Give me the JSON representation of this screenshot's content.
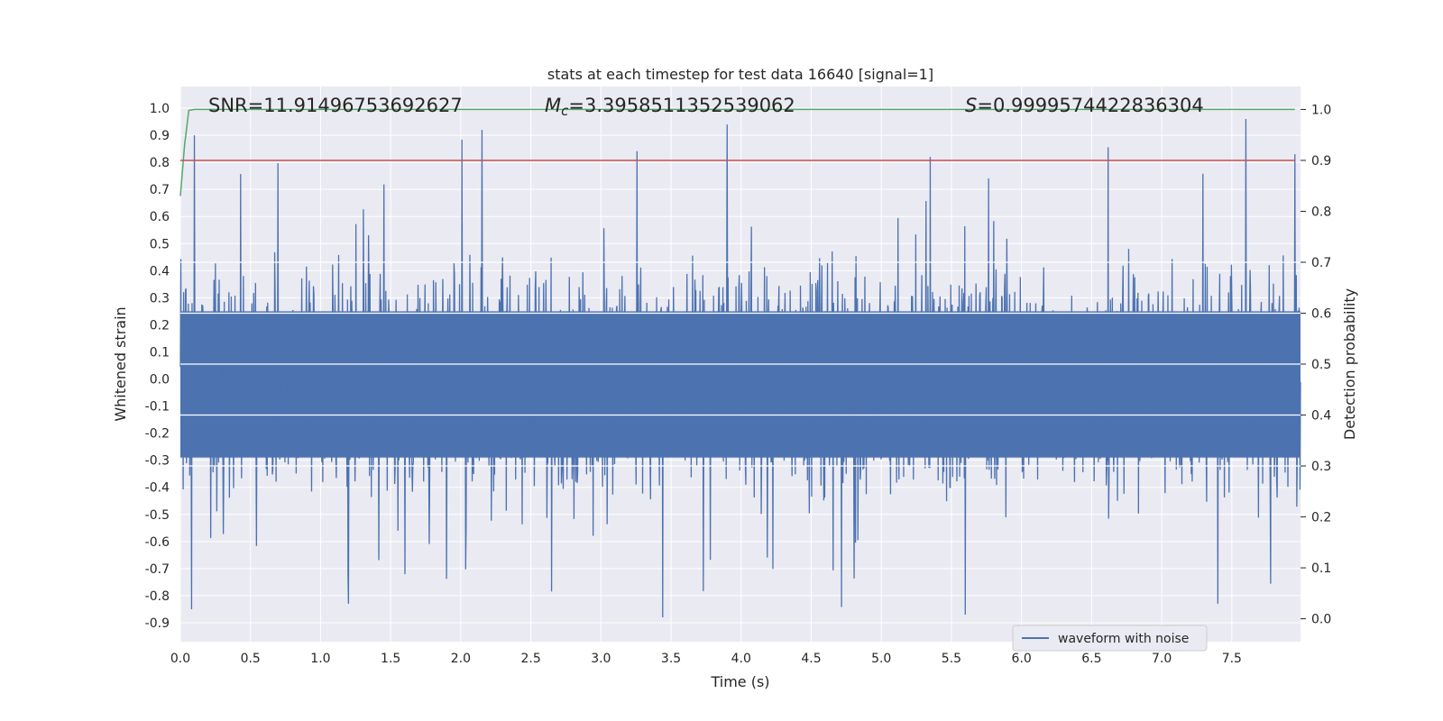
{
  "chart_data": {
    "type": "line",
    "title": "stats at each timestep for test data 16640 [signal=1]",
    "xlabel": "Time (s)",
    "ylabel": "Whitened strain",
    "y2label": "Detection probability",
    "xlim": [
      0.0,
      7.99
    ],
    "ylim": [
      -0.97,
      1.08
    ],
    "y2lim": [
      -0.045,
      1.045
    ],
    "xticks": [
      "0.0",
      "0.5",
      "1.0",
      "1.5",
      "2.0",
      "2.5",
      "3.0",
      "3.5",
      "4.0",
      "4.5",
      "5.0",
      "5.5",
      "6.0",
      "6.5",
      "7.0",
      "7.5"
    ],
    "yticks": [
      "1.0",
      "0.9",
      "0.8",
      "0.7",
      "0.6",
      "0.5",
      "0.4",
      "0.3",
      "0.2",
      "0.1",
      "0.0",
      "-0.1",
      "-0.2",
      "-0.3",
      "-0.4",
      "-0.5",
      "-0.6",
      "-0.7",
      "-0.8",
      "-0.9"
    ],
    "y2ticks": [
      "1.0",
      "0.9",
      "0.8",
      "0.7",
      "0.6",
      "0.5",
      "0.4",
      "0.3",
      "0.2",
      "0.1",
      "0.0"
    ],
    "grid": true,
    "legend_position": "lower-right",
    "annotations": {
      "snr": "SNR=11.91496753692627",
      "mc_symbol": "M",
      "mc_sub": "c",
      "mc_value": "=3.3958511352539062",
      "s_symbol": "S",
      "s_value": "=0.9999574422836304"
    },
    "series": [
      {
        "name": "waveform with noise",
        "axis": "left",
        "color": "#4c72b0",
        "description_points": {
          "x_start": 0.0,
          "x_end": 7.99,
          "peaks": [
            {
              "x": 0.08,
              "y": 1.0
            },
            {
              "x": 0.1,
              "y": 0.9
            },
            {
              "x": 2.15,
              "y": 0.92
            },
            {
              "x": 3.9,
              "y": 0.94
            },
            {
              "x": 5.35,
              "y": 0.82
            },
            {
              "x": 7.6,
              "y": 0.96
            },
            {
              "x": 7.95,
              "y": 0.83
            }
          ],
          "troughs": [
            {
              "x": 0.08,
              "y": -0.85
            },
            {
              "x": 3.44,
              "y": -0.88
            },
            {
              "x": 5.6,
              "y": -0.87
            },
            {
              "x": 7.4,
              "y": -0.83
            },
            {
              "x": 1.2,
              "y": -0.83
            }
          ]
        }
      },
      {
        "name": "",
        "axis": "right",
        "color": "#55a868",
        "x": [
          0.0,
          0.03,
          0.06,
          0.1,
          7.95
        ],
        "y": [
          0.83,
          0.93,
          0.998,
          1.0,
          1.0
        ]
      },
      {
        "name": "",
        "axis": "right",
        "color": "#c44e52",
        "x": [
          0.0,
          7.95
        ],
        "y": [
          0.9,
          0.9
        ]
      }
    ]
  }
}
